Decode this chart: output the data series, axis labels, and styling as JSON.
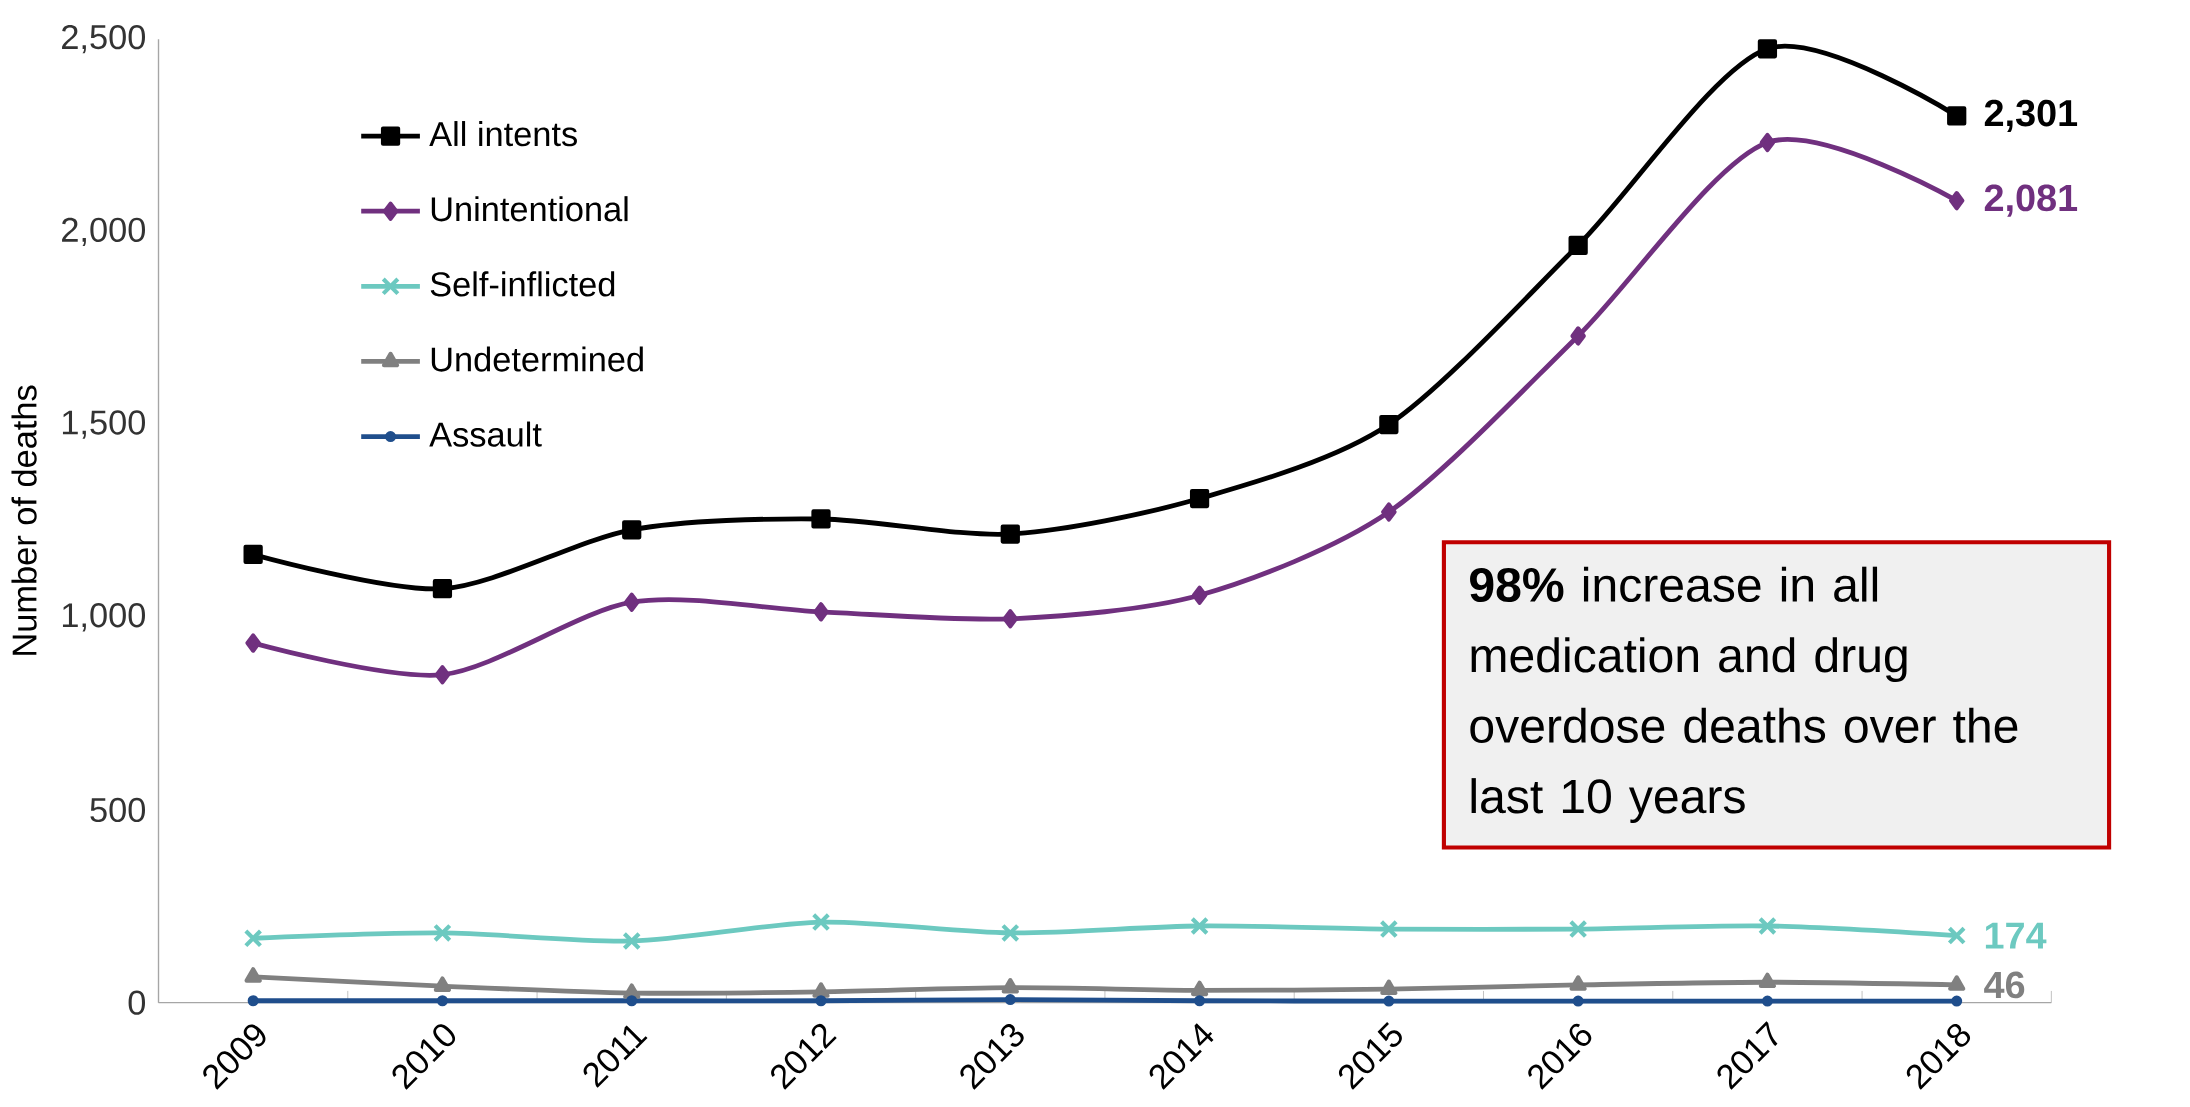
{
  "chart_data": {
    "type": "line",
    "ylabel": "Number of deaths",
    "categories": [
      "2009",
      "2010",
      "2011",
      "2012",
      "2013",
      "2014",
      "2015",
      "2016",
      "2017",
      "2018"
    ],
    "ylim": [
      0,
      2500
    ],
    "yticks": [
      0,
      500,
      {
        "value": 1000,
        "label": "1,000"
      },
      {
        "value": 1500,
        "label": "1,500"
      },
      {
        "value": 2000,
        "label": "2,000"
      },
      {
        "value": 2500,
        "label": "2,500"
      }
    ],
    "legend": "top left",
    "series": [
      {
        "name": "All intents",
        "color": "#000000",
        "marker": "square",
        "values": [
          1163,
          1074,
          1227,
          1255,
          1216,
          1308,
          1500,
          1965,
          2475,
          2301
        ],
        "value_labels": [
          null,
          null,
          null,
          null,
          null,
          null,
          null,
          null,
          null,
          "2,301"
        ]
      },
      {
        "name": "Unintentional",
        "color": "#70307f",
        "marker": "diamond",
        "values": [
          933,
          851,
          1039,
          1014,
          996,
          1057,
          1273,
          1730,
          2232,
          2081
        ],
        "value_labels": [
          null,
          null,
          null,
          null,
          null,
          null,
          null,
          null,
          null,
          "2,081"
        ]
      },
      {
        "name": "Self-inflicted",
        "color": "#6cc9c0",
        "marker": "cross",
        "values": [
          167,
          181,
          160,
          209,
          181,
          199,
          191,
          191,
          199,
          174
        ],
        "value_labels": [
          null,
          null,
          null,
          null,
          null,
          null,
          null,
          null,
          null,
          "174"
        ]
      },
      {
        "name": "Undetermined",
        "color": "#808080",
        "marker": "triangle",
        "values": [
          67,
          43,
          25,
          28,
          39,
          32,
          35,
          46,
          53,
          46
        ],
        "value_labels": [
          null,
          null,
          null,
          null,
          null,
          null,
          null,
          null,
          null,
          "46"
        ]
      },
      {
        "name": "Assault",
        "color": "#1f4e8c",
        "marker": "circle",
        "values": [
          5,
          5,
          5,
          5,
          8,
          5,
          4,
          4,
          4,
          4
        ]
      }
    ],
    "annotations": [
      "**98%** increase in all medication and drug overdose deaths over the last 10 years"
    ]
  }
}
